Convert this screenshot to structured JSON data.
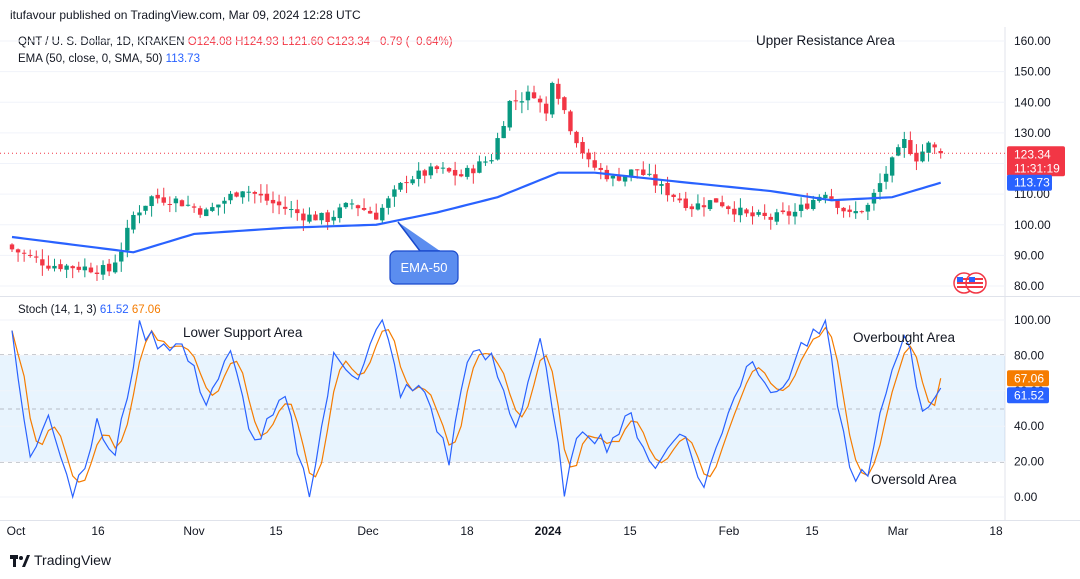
{
  "header": {
    "published": "itufavour published on TradingView.com, Mar 09, 2024 12:28 UTC"
  },
  "legend": {
    "symbol": "QNT / U. S. Dollar, 1D, KRAKEN",
    "o": "O124.08",
    "h": "H124.93",
    "l": "L121.60",
    "c": "C123.34",
    "chg": "−0.79 (−0.64%)",
    "ema_label": "EMA (50, close, 0, SMA, 50)",
    "ema_value": "113.73",
    "stoch_label": "Stoch (14, 1, 3)",
    "stoch_k": "61.52",
    "stoch_d": "67.06"
  },
  "annotations": {
    "upper_resistance": "Upper Resistance Area",
    "ema_callout": "EMA-50",
    "lower_support": "Lower Support Area",
    "overbought": "Overbought Area",
    "oversold": "Oversold Area"
  },
  "price_axis": {
    "ticks": [
      "160.00",
      "150.00",
      "140.00",
      "130.00",
      "120.00",
      "110.00",
      "100.00",
      "90.00",
      "80.00"
    ],
    "last_price": "123.34",
    "countdown": "11:31:19",
    "ema_tag": "113.73"
  },
  "stoch_axis": {
    "ticks": [
      "100.00",
      "80.00",
      "60.00",
      "40.00",
      "20.00",
      "0.00"
    ],
    "k_tag": "61.52",
    "d_tag": "67.06"
  },
  "time_axis": {
    "ticks": [
      "Oct",
      "16",
      "Nov",
      "15",
      "Dec",
      "18",
      "2024",
      "15",
      "Feb",
      "15",
      "Mar",
      "18"
    ]
  },
  "footer": {
    "brand": "TradingView"
  },
  "colors": {
    "up": "#089981",
    "down": "#f23645",
    "ema": "#2962ff",
    "stoch_k": "#2962ff",
    "stoch_d": "#f57c00"
  },
  "chart_data": [
    {
      "type": "candlestick",
      "title": "QNT / U. S. Dollar, 1D, KRAKEN",
      "ylim": [
        78,
        163
      ],
      "y_ticks": [
        160,
        150,
        140,
        130,
        120,
        110,
        100,
        90,
        80
      ],
      "x_ticks": [
        "Oct",
        "16",
        "Nov",
        "15",
        "Dec",
        "18",
        "2024",
        "15",
        "Feb",
        "15",
        "Mar",
        "18"
      ],
      "grid": true,
      "anchors": [
        {
          "i": 0,
          "close": 92
        },
        {
          "i": 6,
          "close": 87
        },
        {
          "i": 12,
          "close": 86
        },
        {
          "i": 16,
          "close": 85
        },
        {
          "i": 18,
          "close": 92
        },
        {
          "i": 20,
          "close": 103
        },
        {
          "i": 23,
          "close": 109
        },
        {
          "i": 27,
          "close": 108
        },
        {
          "i": 32,
          "close": 104
        },
        {
          "i": 38,
          "close": 112
        },
        {
          "i": 43,
          "close": 107
        },
        {
          "i": 48,
          "close": 103
        },
        {
          "i": 52,
          "close": 102
        },
        {
          "i": 56,
          "close": 107
        },
        {
          "i": 60,
          "close": 103
        },
        {
          "i": 65,
          "close": 115
        },
        {
          "i": 70,
          "close": 118
        },
        {
          "i": 74,
          "close": 116
        },
        {
          "i": 79,
          "close": 122
        },
        {
          "i": 82,
          "close": 140
        },
        {
          "i": 86,
          "close": 143
        },
        {
          "i": 88,
          "close": 136
        },
        {
          "i": 89,
          "close": 148
        },
        {
          "i": 92,
          "close": 132
        },
        {
          "i": 95,
          "close": 120
        },
        {
          "i": 99,
          "close": 115
        },
        {
          "i": 103,
          "close": 118
        },
        {
          "i": 107,
          "close": 112
        },
        {
          "i": 112,
          "close": 106
        },
        {
          "i": 116,
          "close": 108
        },
        {
          "i": 121,
          "close": 103
        },
        {
          "i": 125,
          "close": 102
        },
        {
          "i": 129,
          "close": 104
        },
        {
          "i": 134,
          "close": 111
        },
        {
          "i": 138,
          "close": 103
        },
        {
          "i": 141,
          "close": 106
        },
        {
          "i": 144,
          "close": 117
        },
        {
          "i": 147,
          "close": 127
        },
        {
          "i": 149,
          "close": 122
        },
        {
          "i": 151,
          "close": 126
        },
        {
          "i": 153,
          "close": 123.34
        }
      ],
      "ema50_anchors": [
        {
          "i": 0,
          "v": 96
        },
        {
          "i": 20,
          "v": 91
        },
        {
          "i": 30,
          "v": 97
        },
        {
          "i": 45,
          "v": 99
        },
        {
          "i": 60,
          "v": 100
        },
        {
          "i": 70,
          "v": 104
        },
        {
          "i": 80,
          "v": 109
        },
        {
          "i": 90,
          "v": 117
        },
        {
          "i": 96,
          "v": 117
        },
        {
          "i": 110,
          "v": 114
        },
        {
          "i": 125,
          "v": 111
        },
        {
          "i": 135,
          "v": 108
        },
        {
          "i": 145,
          "v": 109
        },
        {
          "i": 153,
          "v": 113.73
        }
      ],
      "last": {
        "open": 124.08,
        "high": 124.93,
        "low": 121.6,
        "close": 123.34,
        "change": -0.79,
        "change_pct": -0.64
      },
      "ema50_last": 113.73
    },
    {
      "type": "line",
      "title": "Stoch (14, 1, 3)",
      "ylim": [
        -5,
        107
      ],
      "y_ticks": [
        100,
        80,
        60,
        40,
        20,
        0
      ],
      "bands": {
        "upper": 80,
        "middle": 50,
        "lower": 20
      },
      "series": [
        {
          "name": "%K",
          "k_anchors": [
            {
              "i": 0,
              "v": 90
            },
            {
              "i": 3,
              "v": 20
            },
            {
              "i": 6,
              "v": 50
            },
            {
              "i": 10,
              "v": 2
            },
            {
              "i": 14,
              "v": 40
            },
            {
              "i": 17,
              "v": 22
            },
            {
              "i": 21,
              "v": 95
            },
            {
              "i": 24,
              "v": 88
            },
            {
              "i": 28,
              "v": 85
            },
            {
              "i": 32,
              "v": 55
            },
            {
              "i": 36,
              "v": 80
            },
            {
              "i": 40,
              "v": 30
            },
            {
              "i": 45,
              "v": 55
            },
            {
              "i": 49,
              "v": 0
            },
            {
              "i": 53,
              "v": 78
            },
            {
              "i": 57,
              "v": 70
            },
            {
              "i": 61,
              "v": 100
            },
            {
              "i": 64,
              "v": 60
            },
            {
              "i": 68,
              "v": 60
            },
            {
              "i": 72,
              "v": 20
            },
            {
              "i": 75,
              "v": 80
            },
            {
              "i": 79,
              "v": 78
            },
            {
              "i": 83,
              "v": 40
            },
            {
              "i": 87,
              "v": 90
            },
            {
              "i": 91,
              "v": 5
            },
            {
              "i": 94,
              "v": 40
            },
            {
              "i": 98,
              "v": 30
            },
            {
              "i": 102,
              "v": 45
            },
            {
              "i": 106,
              "v": 15
            },
            {
              "i": 110,
              "v": 40
            },
            {
              "i": 114,
              "v": 5
            },
            {
              "i": 118,
              "v": 50
            },
            {
              "i": 122,
              "v": 80
            },
            {
              "i": 126,
              "v": 55
            },
            {
              "i": 130,
              "v": 85
            },
            {
              "i": 134,
              "v": 95
            },
            {
              "i": 138,
              "v": 15
            },
            {
              "i": 141,
              "v": 10
            },
            {
              "i": 144,
              "v": 60
            },
            {
              "i": 147,
              "v": 95
            },
            {
              "i": 150,
              "v": 50
            },
            {
              "i": 153,
              "v": 61.52
            }
          ]
        },
        {
          "name": "%D",
          "last": 67.06
        }
      ]
    }
  ]
}
